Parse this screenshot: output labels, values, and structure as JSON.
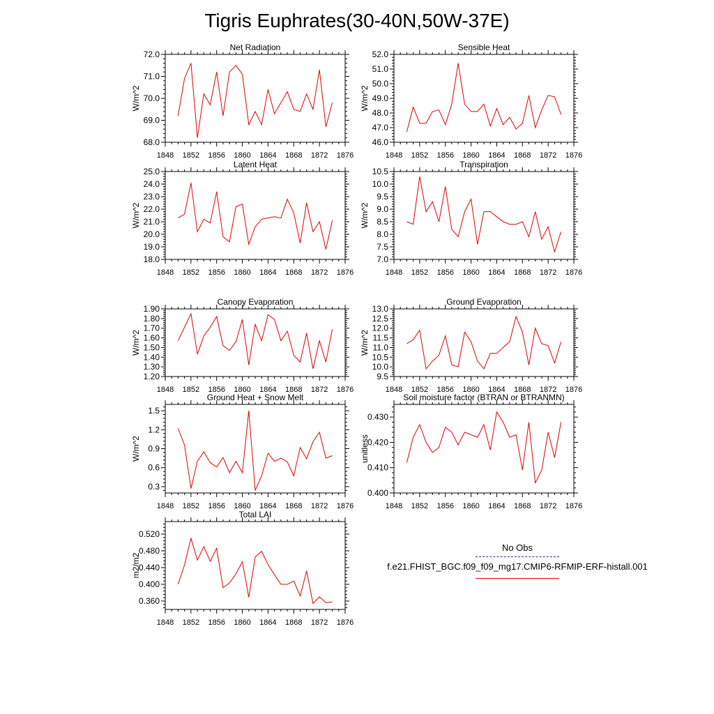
{
  "figure": {
    "title": "Tigris Euphrates(30-40N,50W-37E)",
    "line_color": "#e00000",
    "obs_color": "#2a2a9a"
  },
  "legend": {
    "obs_label": "No Obs",
    "model_label": "f.e21.FHIST_BGC.f09_f09_mg17.CMIP6-RFMIP-ERF-histall.001"
  },
  "chart_data": [
    {
      "type": "line",
      "title": "Net Radiation",
      "ylabel": "W/m^2",
      "xlim": [
        1848,
        1876
      ],
      "xticks": [
        1848,
        1852,
        1856,
        1860,
        1864,
        1868,
        1872,
        1876
      ],
      "ylim": [
        68.0,
        72.0
      ],
      "yticks": [
        "68.0",
        "69.0",
        "70.0",
        "71.0",
        "72.0"
      ],
      "x": [
        1850,
        1851,
        1852,
        1853,
        1854,
        1855,
        1856,
        1857,
        1858,
        1859,
        1860,
        1861,
        1862,
        1863,
        1864,
        1865,
        1866,
        1867,
        1868,
        1869,
        1870,
        1871,
        1872,
        1873,
        1874
      ],
      "values": [
        69.2,
        70.9,
        71.6,
        68.2,
        70.2,
        69.7,
        71.2,
        69.2,
        71.2,
        71.5,
        71.1,
        68.8,
        69.4,
        68.8,
        70.4,
        69.3,
        69.8,
        70.3,
        69.5,
        69.4,
        70.2,
        69.5,
        71.3,
        68.7,
        69.8
      ]
    },
    {
      "type": "line",
      "title": "Sensible Heat",
      "ylabel": "W/m^2",
      "xlim": [
        1848,
        1876
      ],
      "xticks": [
        1848,
        1852,
        1856,
        1860,
        1864,
        1868,
        1872,
        1876
      ],
      "ylim": [
        46.0,
        52.0
      ],
      "yticks": [
        "46.0",
        "47.0",
        "48.0",
        "49.0",
        "50.0",
        "51.0",
        "52.0"
      ],
      "x": [
        1850,
        1851,
        1852,
        1853,
        1854,
        1855,
        1856,
        1857,
        1858,
        1859,
        1860,
        1861,
        1862,
        1863,
        1864,
        1865,
        1866,
        1867,
        1868,
        1869,
        1870,
        1871,
        1872,
        1873,
        1874
      ],
      "values": [
        46.7,
        48.4,
        47.3,
        47.3,
        48.1,
        48.2,
        47.2,
        48.6,
        51.4,
        48.6,
        48.1,
        48.1,
        48.6,
        47.1,
        48.3,
        47.2,
        47.7,
        46.9,
        47.3,
        49.2,
        47.0,
        48.2,
        49.2,
        49.1,
        47.9
      ]
    },
    {
      "type": "line",
      "title": "Latent Heat",
      "ylabel": "W/m^2",
      "xlim": [
        1848,
        1876
      ],
      "xticks": [
        1848,
        1852,
        1856,
        1860,
        1864,
        1868,
        1872,
        1876
      ],
      "ylim": [
        18.0,
        25.0
      ],
      "yticks": [
        "18.0",
        "19.0",
        "20.0",
        "21.0",
        "22.0",
        "23.0",
        "24.0",
        "25.0"
      ],
      "x": [
        1850,
        1851,
        1852,
        1853,
        1854,
        1855,
        1856,
        1857,
        1858,
        1859,
        1860,
        1861,
        1862,
        1863,
        1864,
        1865,
        1866,
        1867,
        1868,
        1869,
        1870,
        1871,
        1872,
        1873,
        1874
      ],
      "values": [
        21.3,
        21.6,
        24.1,
        20.2,
        21.2,
        20.9,
        23.4,
        19.8,
        19.4,
        22.2,
        22.4,
        19.2,
        20.6,
        21.2,
        21.3,
        21.4,
        21.3,
        22.8,
        21.7,
        19.3,
        22.5,
        20.2,
        21.0,
        18.8,
        21.1
      ]
    },
    {
      "type": "line",
      "title": "Transpiration",
      "ylabel": "W/m^2",
      "xlim": [
        1848,
        1876
      ],
      "xticks": [
        1848,
        1852,
        1856,
        1860,
        1864,
        1868,
        1872,
        1876
      ],
      "ylim": [
        7.0,
        10.5
      ],
      "yticks": [
        "7.0",
        "7.5",
        "8.0",
        "8.5",
        "9.0",
        "9.5",
        "10.0",
        "10.5"
      ],
      "x": [
        1850,
        1851,
        1852,
        1853,
        1854,
        1855,
        1856,
        1857,
        1858,
        1859,
        1860,
        1861,
        1862,
        1863,
        1864,
        1865,
        1866,
        1867,
        1868,
        1869,
        1870,
        1871,
        1872,
        1873,
        1874
      ],
      "values": [
        8.5,
        8.4,
        10.3,
        8.9,
        9.3,
        8.5,
        9.9,
        8.2,
        7.9,
        8.9,
        9.4,
        7.6,
        8.9,
        8.9,
        8.7,
        8.5,
        8.4,
        8.4,
        8.5,
        7.9,
        8.9,
        7.8,
        8.3,
        7.3,
        8.1
      ]
    },
    {
      "type": "line",
      "title": "Canopy Evaporation",
      "ylabel": "W/m^2",
      "xlim": [
        1848,
        1876
      ],
      "xticks": [
        1848,
        1852,
        1856,
        1860,
        1864,
        1868,
        1872,
        1876
      ],
      "ylim": [
        1.2,
        1.9
      ],
      "yticks": [
        "1.20",
        "1.30",
        "1.40",
        "1.50",
        "1.60",
        "1.70",
        "1.80",
        "1.90"
      ],
      "x": [
        1850,
        1851,
        1852,
        1853,
        1854,
        1855,
        1856,
        1857,
        1858,
        1859,
        1860,
        1861,
        1862,
        1863,
        1864,
        1865,
        1866,
        1867,
        1868,
        1869,
        1870,
        1871,
        1872,
        1873,
        1874
      ],
      "values": [
        1.57,
        1.71,
        1.85,
        1.43,
        1.62,
        1.71,
        1.82,
        1.52,
        1.47,
        1.56,
        1.79,
        1.32,
        1.74,
        1.57,
        1.84,
        1.79,
        1.57,
        1.67,
        1.42,
        1.35,
        1.65,
        1.28,
        1.57,
        1.35,
        1.69
      ]
    },
    {
      "type": "line",
      "title": "Ground Evaporation",
      "ylabel": "W/m^2",
      "xlim": [
        1848,
        1876
      ],
      "xticks": [
        1848,
        1852,
        1856,
        1860,
        1864,
        1868,
        1872,
        1876
      ],
      "ylim": [
        9.5,
        13.0
      ],
      "yticks": [
        "9.5",
        "10.0",
        "10.5",
        "11.0",
        "11.5",
        "12.0",
        "12.5",
        "13.0"
      ],
      "x": [
        1850,
        1851,
        1852,
        1853,
        1854,
        1855,
        1856,
        1857,
        1858,
        1859,
        1860,
        1861,
        1862,
        1863,
        1864,
        1865,
        1866,
        1867,
        1868,
        1869,
        1870,
        1871,
        1872,
        1873,
        1874
      ],
      "values": [
        11.2,
        11.4,
        11.9,
        9.9,
        10.3,
        10.6,
        11.6,
        10.1,
        10.0,
        11.8,
        11.3,
        10.3,
        9.9,
        10.7,
        10.7,
        11.0,
        11.3,
        12.6,
        11.8,
        10.1,
        12.0,
        11.2,
        11.1,
        10.2,
        11.3
      ]
    },
    {
      "type": "line",
      "title": "Ground Heat + Snow Melt",
      "ylabel": "W/m^2",
      "xlim": [
        1848,
        1876
      ],
      "xticks": [
        1848,
        1852,
        1856,
        1860,
        1864,
        1868,
        1872,
        1876
      ],
      "ylim": [
        0.2,
        1.6
      ],
      "yticks": [
        "0.3",
        "0.6",
        "0.9",
        "1.2",
        "1.5"
      ],
      "x": [
        1850,
        1851,
        1852,
        1853,
        1854,
        1855,
        1856,
        1857,
        1858,
        1859,
        1860,
        1861,
        1862,
        1863,
        1864,
        1865,
        1866,
        1867,
        1868,
        1869,
        1870,
        1871,
        1872,
        1873,
        1874
      ],
      "values": [
        1.22,
        0.96,
        0.27,
        0.7,
        0.85,
        0.68,
        0.61,
        0.76,
        0.52,
        0.7,
        0.52,
        1.5,
        0.24,
        0.47,
        0.83,
        0.7,
        0.75,
        0.69,
        0.47,
        0.92,
        0.74,
        1.01,
        1.16,
        0.75,
        0.79
      ]
    },
    {
      "type": "line",
      "title": "Soil moisture factor (BTRAN or BTRANMN)",
      "ylabel": "unitless",
      "xlim": [
        1848,
        1876
      ],
      "xticks": [
        1848,
        1852,
        1856,
        1860,
        1864,
        1868,
        1872,
        1876
      ],
      "ylim": [
        0.4,
        0.435
      ],
      "yticks": [
        "0.400",
        "0.410",
        "0.420",
        "0.430"
      ],
      "x": [
        1850,
        1851,
        1852,
        1853,
        1854,
        1855,
        1856,
        1857,
        1858,
        1859,
        1860,
        1861,
        1862,
        1863,
        1864,
        1865,
        1866,
        1867,
        1868,
        1869,
        1870,
        1871,
        1872,
        1873,
        1874
      ],
      "values": [
        0.412,
        0.422,
        0.427,
        0.42,
        0.416,
        0.418,
        0.426,
        0.424,
        0.419,
        0.424,
        0.423,
        0.422,
        0.427,
        0.417,
        0.432,
        0.428,
        0.422,
        0.423,
        0.409,
        0.428,
        0.404,
        0.409,
        0.424,
        0.414,
        0.428
      ]
    },
    {
      "type": "line",
      "title": "Total LAI",
      "ylabel": "m2/m2",
      "xlim": [
        1848,
        1876
      ],
      "xticks": [
        1848,
        1852,
        1856,
        1860,
        1864,
        1868,
        1872,
        1876
      ],
      "ylim": [
        0.34,
        0.55
      ],
      "yticks": [
        "0.360",
        "0.400",
        "0.440",
        "0.480",
        "0.520"
      ],
      "x": [
        1850,
        1851,
        1852,
        1853,
        1854,
        1855,
        1856,
        1857,
        1858,
        1859,
        1860,
        1861,
        1862,
        1863,
        1864,
        1865,
        1866,
        1867,
        1868,
        1869,
        1870,
        1871,
        1872,
        1873,
        1874
      ],
      "values": [
        0.4,
        0.446,
        0.51,
        0.458,
        0.49,
        0.455,
        0.486,
        0.392,
        0.403,
        0.425,
        0.454,
        0.369,
        0.465,
        0.479,
        0.447,
        0.423,
        0.4,
        0.4,
        0.408,
        0.372,
        0.432,
        0.354,
        0.37,
        0.356,
        0.358
      ]
    }
  ]
}
